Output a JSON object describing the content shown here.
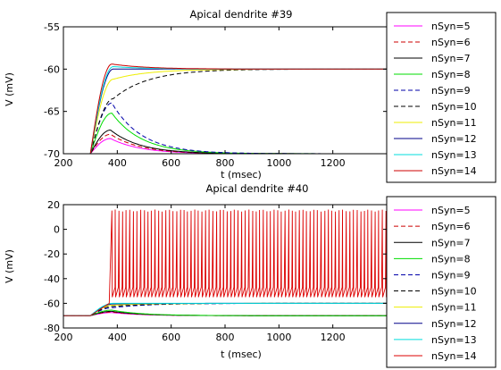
{
  "chart_data": [
    {
      "type": "line",
      "title": "Apical dendrite #39",
      "xlabel": "t (msec)",
      "ylabel": "V (mV)",
      "xlim": [
        200,
        1400
      ],
      "ylim": [
        -70,
        -55
      ],
      "x_ticks": [
        200,
        400,
        600,
        800,
        1000,
        1200
      ],
      "y_ticks": [
        -55,
        -60,
        -65,
        -70
      ],
      "grid": false,
      "legend_placement": "right",
      "series": [
        {
          "name": "nSyn=5",
          "color": "#ff00ff",
          "dash": "solid",
          "rest": -70,
          "onset": 300,
          "peak_v": -68.2,
          "peak_t": 375,
          "final": -70
        },
        {
          "name": "nSyn=6",
          "color": "#cc0000",
          "dash": "dash",
          "rest": -70,
          "onset": 300,
          "peak_v": -67.7,
          "peak_t": 375,
          "final": -70
        },
        {
          "name": "nSyn=7",
          "color": "#000000",
          "dash": "solid",
          "rest": -70,
          "onset": 300,
          "peak_v": -67.2,
          "peak_t": 375,
          "final": -70
        },
        {
          "name": "nSyn=8",
          "color": "#00dd00",
          "dash": "solid",
          "rest": -70,
          "onset": 300,
          "peak_v": -65.2,
          "peak_t": 380,
          "final": -70
        },
        {
          "name": "nSyn=9",
          "color": "#0000aa",
          "dash": "dash",
          "rest": -70,
          "onset": 300,
          "peak_v": -64.0,
          "peak_t": 380,
          "final": -70
        },
        {
          "name": "nSyn=10",
          "color": "#000000",
          "dash": "dash",
          "rest": -70,
          "onset": 300,
          "peak_v": -63.5,
          "peak_t": 385,
          "final": -60
        },
        {
          "name": "nSyn=11",
          "color": "#eeee00",
          "dash": "solid",
          "rest": -70,
          "onset": 300,
          "peak_v": -61.2,
          "peak_t": 385,
          "final": -60
        },
        {
          "name": "nSyn=12",
          "color": "#000088",
          "dash": "solid",
          "rest": -70,
          "onset": 300,
          "peak_v": -60.0,
          "peak_t": 385,
          "final": -60
        },
        {
          "name": "nSyn=13",
          "color": "#00dddd",
          "dash": "solid",
          "rest": -70,
          "onset": 300,
          "peak_v": -59.7,
          "peak_t": 385,
          "final": -60
        },
        {
          "name": "nSyn=14",
          "color": "#cc0000",
          "dash": "solid",
          "rest": -70,
          "onset": 300,
          "peak_v": -59.4,
          "peak_t": 380,
          "final": -60
        }
      ]
    },
    {
      "type": "line",
      "title": "Apical dendrite #40",
      "xlabel": "t (msec)",
      "ylabel": "V (mV)",
      "xlim": [
        200,
        1400
      ],
      "ylim": [
        -80,
        20
      ],
      "x_ticks": [
        200,
        400,
        600,
        800,
        1000,
        1200
      ],
      "y_ticks": [
        20,
        0,
        -20,
        -40,
        -60,
        -80
      ],
      "grid": false,
      "legend_placement": "right",
      "series": [
        {
          "name": "nSyn=5",
          "color": "#ff00ff",
          "dash": "solid",
          "rest": -70,
          "onset": 300,
          "peak_v": -67.5,
          "peak_t": 380,
          "final": -70
        },
        {
          "name": "nSyn=6",
          "color": "#cc0000",
          "dash": "dash",
          "rest": -70,
          "onset": 300,
          "peak_v": -67.0,
          "peak_t": 380,
          "final": -70
        },
        {
          "name": "nSyn=7",
          "color": "#000000",
          "dash": "solid",
          "rest": -70,
          "onset": 300,
          "peak_v": -66.5,
          "peak_t": 380,
          "final": -70
        },
        {
          "name": "nSyn=8",
          "color": "#00dd00",
          "dash": "solid",
          "rest": -70,
          "onset": 300,
          "peak_v": -65.5,
          "peak_t": 380,
          "final": -70
        },
        {
          "name": "nSyn=9",
          "color": "#0000aa",
          "dash": "dash",
          "rest": -70,
          "onset": 300,
          "peak_v": -63.5,
          "peak_t": 385,
          "final": -60
        },
        {
          "name": "nSyn=10",
          "color": "#000000",
          "dash": "dash",
          "rest": -70,
          "onset": 300,
          "peak_v": -62.5,
          "peak_t": 385,
          "final": -60
        },
        {
          "name": "nSyn=11",
          "color": "#eeee00",
          "dash": "solid",
          "rest": -70,
          "onset": 300,
          "peak_v": -61.5,
          "peak_t": 385,
          "final": -60
        },
        {
          "name": "nSyn=12",
          "color": "#000088",
          "dash": "solid",
          "rest": -70,
          "onset": 300,
          "peak_v": -60.5,
          "peak_t": 385,
          "final": -60
        },
        {
          "name": "nSyn=13",
          "color": "#00dddd",
          "dash": "solid",
          "rest": -70,
          "onset": 300,
          "peak_v": -60.0,
          "peak_t": 385,
          "final": -60
        },
        {
          "name": "nSyn=14",
          "color": "#dd0000",
          "dash": "solid",
          "rest": -70,
          "onset": 300,
          "spiking": true,
          "spike_start": 380,
          "spike_period_ms": 13.5,
          "spike_peak": 16,
          "spike_trough": -55
        }
      ]
    }
  ]
}
